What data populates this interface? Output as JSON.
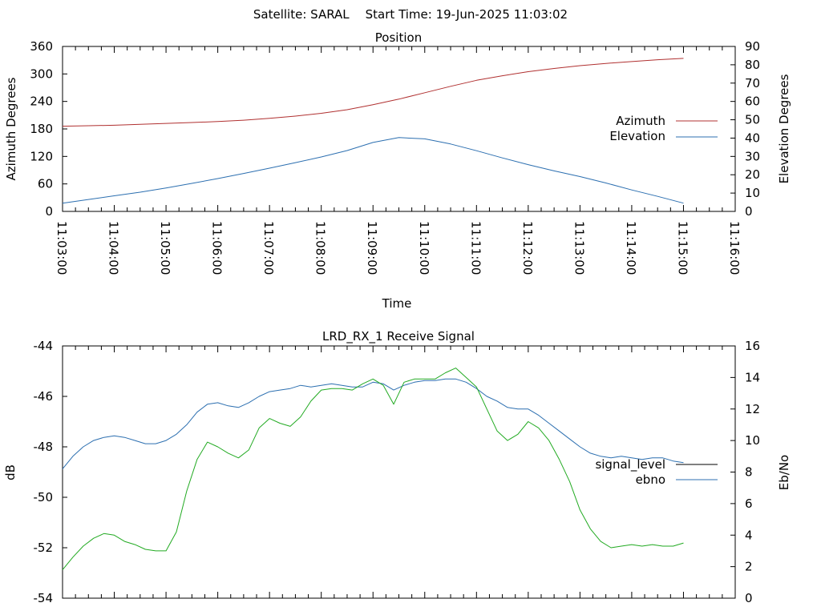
{
  "header": {
    "satellite_label": "Satellite: SARAL",
    "start_time_label": "Start Time: 19-Jun-2025 11:03:02"
  },
  "chart_data": [
    {
      "id": "position",
      "type": "line",
      "title": "Position",
      "xlabel": "Time",
      "ylabel": "Azimuth Degrees",
      "y2label": "Elevation Degrees",
      "x_tick_labels": [
        "11:03:00",
        "11:04:00",
        "11:05:00",
        "11:06:00",
        "11:07:00",
        "11:08:00",
        "11:09:00",
        "11:10:00",
        "11:11:00",
        "11:12:00",
        "11:13:00",
        "11:14:00",
        "11:15:00",
        "11:16:00"
      ],
      "xlim_minutes": [
        0,
        13
      ],
      "ylim": [
        0,
        360
      ],
      "y_ticks": [
        0,
        60,
        120,
        180,
        240,
        300,
        360
      ],
      "y2lim": [
        0,
        90
      ],
      "y2_ticks": [
        0,
        10,
        20,
        30,
        40,
        50,
        60,
        70,
        80,
        90
      ],
      "grid": false,
      "legend_position": "right",
      "series": [
        {
          "name": "Azimuth",
          "axis": "y",
          "color": "#b03030",
          "x_minutes": [
            0,
            0.5,
            1,
            1.5,
            2,
            2.5,
            3,
            3.5,
            4,
            4.5,
            5,
            5.5,
            6,
            6.5,
            7,
            7.5,
            8,
            8.5,
            9,
            9.5,
            10,
            10.5,
            11,
            11.5,
            12
          ],
          "values": [
            186,
            187,
            188,
            190,
            192,
            194,
            196,
            199,
            203,
            208,
            214,
            222,
            233,
            245,
            259,
            273,
            286,
            296,
            305,
            312,
            318,
            323,
            327,
            331,
            334
          ]
        },
        {
          "name": "Elevation",
          "axis": "y2",
          "color": "#2c6fb0",
          "x_minutes": [
            0,
            0.5,
            1,
            1.5,
            2,
            2.5,
            3,
            3.5,
            4,
            4.5,
            5,
            5.5,
            6,
            6.5,
            7,
            7.5,
            8,
            8.5,
            9,
            9.5,
            10,
            10.5,
            11,
            11.5,
            12
          ],
          "values": [
            4.5,
            6.5,
            8.5,
            10.5,
            12.8,
            15.3,
            17.9,
            20.7,
            23.6,
            26.6,
            29.7,
            33.2,
            37.6,
            40.3,
            39.6,
            36.8,
            33.1,
            29.2,
            25.5,
            22.1,
            19.0,
            15.5,
            11.7,
            8.2,
            4.5
          ]
        }
      ]
    },
    {
      "id": "receive-signal",
      "type": "line",
      "title": "LRD_RX_1 Receive Signal",
      "ylabel": "dB",
      "y2label": "Eb/No",
      "xlim_minutes": [
        0,
        13
      ],
      "ylim": [
        -54,
        -44
      ],
      "y_ticks": [
        -54,
        -52,
        -50,
        -48,
        -46,
        -44
      ],
      "y2lim": [
        0,
        16
      ],
      "y2_ticks": [
        0,
        2,
        4,
        6,
        8,
        10,
        12,
        14,
        16
      ],
      "grid": false,
      "legend_position": "right",
      "series": [
        {
          "name": "signal_level",
          "axis": "y",
          "color": "#000000",
          "x_minutes": [],
          "values": []
        },
        {
          "name": "ebno",
          "axis": "y2",
          "color": "#2c6fb0",
          "x_minutes": [
            0,
            0.2,
            0.4,
            0.6,
            0.8,
            1,
            1.2,
            1.4,
            1.6,
            1.8,
            2,
            2.2,
            2.4,
            2.6,
            2.8,
            3,
            3.2,
            3.4,
            3.6,
            3.8,
            4,
            4.2,
            4.4,
            4.6,
            4.8,
            5,
            5.2,
            5.4,
            5.6,
            5.8,
            6,
            6.2,
            6.4,
            6.6,
            6.8,
            7,
            7.2,
            7.4,
            7.6,
            7.8,
            8,
            8.2,
            8.4,
            8.6,
            8.8,
            9,
            9.2,
            9.4,
            9.6,
            9.8,
            10,
            10.2,
            10.4,
            10.6,
            10.8,
            11,
            11.2,
            11.4,
            11.6,
            11.8,
            12
          ],
          "values": [
            8.2,
            9,
            9.6,
            10,
            10.2,
            10.3,
            10.2,
            10,
            9.8,
            9.8,
            10,
            10.4,
            11,
            11.8,
            12.3,
            12.4,
            12.2,
            12.1,
            12.4,
            12.8,
            13.1,
            13.2,
            13.3,
            13.5,
            13.4,
            13.5,
            13.6,
            13.5,
            13.4,
            13.4,
            13.7,
            13.6,
            13.2,
            13.5,
            13.7,
            13.8,
            13.8,
            13.9,
            13.9,
            13.7,
            13.3,
            12.8,
            12.5,
            12.1,
            12.0,
            12.0,
            11.6,
            11.1,
            10.6,
            10.1,
            9.6,
            9.2,
            9.0,
            8.9,
            9.0,
            8.9,
            8.8,
            8.9,
            8.9,
            8.7,
            8.6
          ]
        },
        {
          "name": "",
          "axis": "y2",
          "color": "#22aa22",
          "x_minutes": [
            0,
            0.2,
            0.4,
            0.6,
            0.8,
            1,
            1.2,
            1.4,
            1.6,
            1.8,
            2,
            2.2,
            2.4,
            2.6,
            2.8,
            3,
            3.2,
            3.4,
            3.6,
            3.8,
            4,
            4.2,
            4.4,
            4.6,
            4.8,
            5,
            5.2,
            5.4,
            5.6,
            5.8,
            6,
            6.2,
            6.4,
            6.6,
            6.8,
            7,
            7.2,
            7.4,
            7.6,
            7.8,
            8,
            8.2,
            8.4,
            8.6,
            8.8,
            9,
            9.2,
            9.4,
            9.6,
            9.8,
            10,
            10.2,
            10.4,
            10.6,
            10.8,
            11,
            11.2,
            11.4,
            11.6,
            11.8,
            12
          ],
          "values": [
            1.8,
            2.6,
            3.3,
            3.8,
            4.1,
            4.0,
            3.6,
            3.4,
            3.1,
            3.0,
            3.0,
            4.2,
            6.8,
            8.8,
            9.9,
            9.6,
            9.2,
            8.9,
            9.4,
            10.8,
            11.4,
            11.1,
            10.9,
            11.5,
            12.5,
            13.2,
            13.3,
            13.3,
            13.2,
            13.6,
            13.9,
            13.5,
            12.3,
            13.7,
            13.9,
            13.9,
            13.9,
            14.3,
            14.6,
            14.0,
            13.4,
            12.0,
            10.6,
            10.0,
            10.4,
            11.2,
            10.8,
            10.0,
            8.8,
            7.4,
            5.6,
            4.4,
            3.6,
            3.2,
            3.3,
            3.4,
            3.3,
            3.4,
            3.3,
            3.3,
            3.5
          ]
        }
      ]
    }
  ]
}
